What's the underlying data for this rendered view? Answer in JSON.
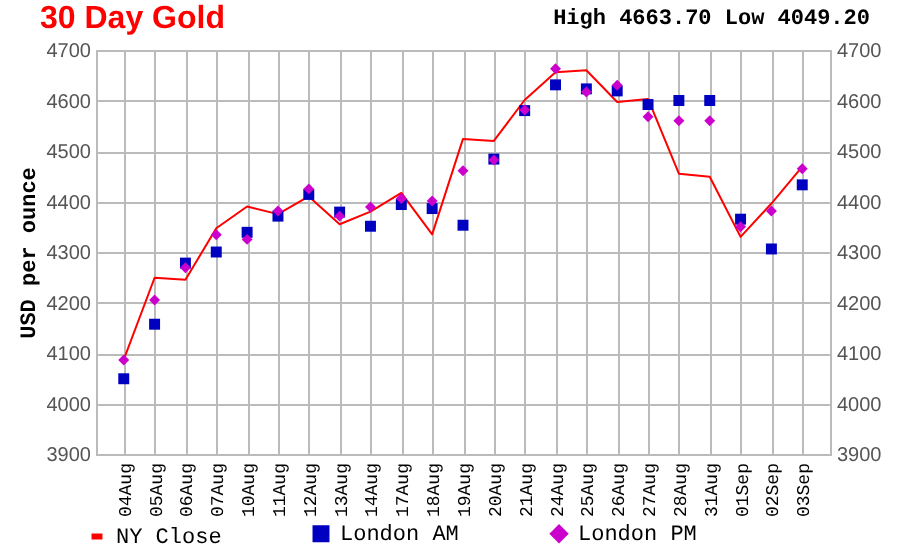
{
  "chart_data": {
    "type": "line",
    "title": "30 Day Gold",
    "subtitle": "High 4663.70 Low 4049.20",
    "ylabel": "USD per ounce",
    "categories": [
      "04Aug",
      "05Aug",
      "06Aug",
      "07Aug",
      "10Aug",
      "11Aug",
      "12Aug",
      "13Aug",
      "14Aug",
      "17Aug",
      "18Aug",
      "19Aug",
      "20Aug",
      "21Aug",
      "24Aug",
      "25Aug",
      "26Aug",
      "27Aug",
      "28Aug",
      "31Aug",
      "01Sep",
      "02Sep",
      "03Sep"
    ],
    "series": [
      {
        "name": "NY Close",
        "type": "line",
        "marker": "none",
        "color": "#ff0000",
        "values": [
          4087,
          4249,
          4245,
          4347,
          4390,
          4375,
          4410,
          4355,
          4380,
          4417,
          4335,
          4524,
          4520,
          4601,
          4656,
          4660,
          4597,
          4603,
          4455,
          4449,
          4330,
          4396,
          4469
        ]
      },
      {
        "name": "London AM",
        "type": "scatter",
        "marker": "square",
        "color": "#0000c0",
        "values": [
          4049,
          4157,
          4278,
          4300,
          4339,
          4371,
          4414,
          4379,
          4351,
          4394,
          4386,
          4353,
          4484,
          4580,
          4631,
          4623,
          4619,
          4592,
          4600,
          4600,
          4365,
          4306,
          4433
        ]
      },
      {
        "name": "London PM",
        "type": "scatter",
        "marker": "diamond",
        "color": "#cc00cc",
        "values": [
          4086,
          4205,
          4269,
          4334,
          4325,
          4381,
          4425,
          4371,
          4389,
          4406,
          4401,
          4461,
          4482,
          4581,
          4663,
          4617,
          4630,
          4568,
          4560,
          4560,
          4350,
          4381,
          4465
        ]
      }
    ],
    "ylim": [
      3900,
      4700
    ],
    "yticks": [
      3900,
      4000,
      4100,
      4200,
      4300,
      4400,
      4500,
      4600,
      4700
    ],
    "y2lim": [
      3900,
      4700
    ],
    "y2ticks": [
      3900,
      4000,
      4100,
      4200,
      4300,
      4400,
      4500,
      4600,
      4700
    ],
    "grid": true,
    "legend": "bottom"
  }
}
